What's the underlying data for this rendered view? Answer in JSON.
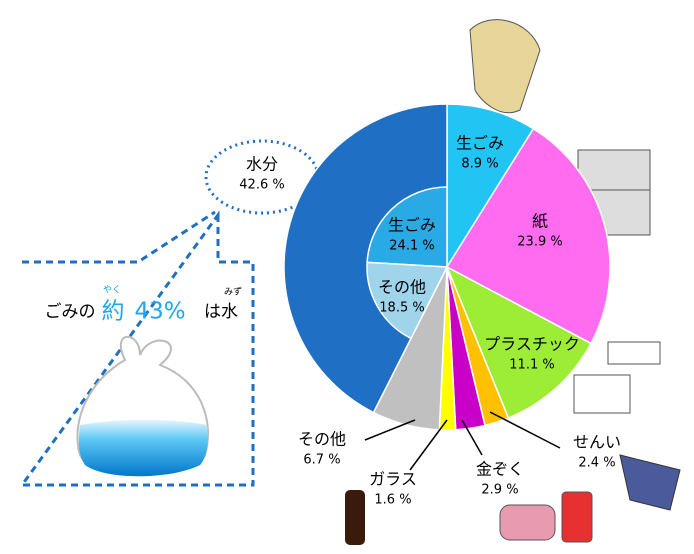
{
  "chart_data": {
    "type": "pie",
    "categories": [
      "生ごみ",
      "紙",
      "プラスチック",
      "せんい",
      "金ぞく",
      "ガラス",
      "その他",
      "水分"
    ],
    "values": [
      8.9,
      23.9,
      11.1,
      2.4,
      2.9,
      1.6,
      6.7,
      42.6
    ],
    "value_labels": [
      "8.9 %",
      "23.9 %",
      "11.1 %",
      "2.4 %",
      "2.9 %",
      "1.6 %",
      "6.7 %",
      "42.6 %"
    ],
    "colors": [
      "#22c4f4",
      "#ff6cf0",
      "#9ded37",
      "#ffc000",
      "#c800c8",
      "#ffff00",
      "#c0c0c0",
      "#1f6fc4"
    ],
    "inner": {
      "categories": [
        "生ごみ",
        "その他"
      ],
      "values": [
        24.1,
        18.5
      ],
      "value_labels": [
        "24.1 %",
        "18.5 %"
      ],
      "colors": [
        "#2aaae4",
        "#9fd4ea"
      ]
    }
  },
  "callout": {
    "prefix": "ごみの",
    "ruby_yaku": "やく",
    "approx": "約",
    "main": "43%",
    "suffix": "は水",
    "ruby_mizu": "みず"
  }
}
